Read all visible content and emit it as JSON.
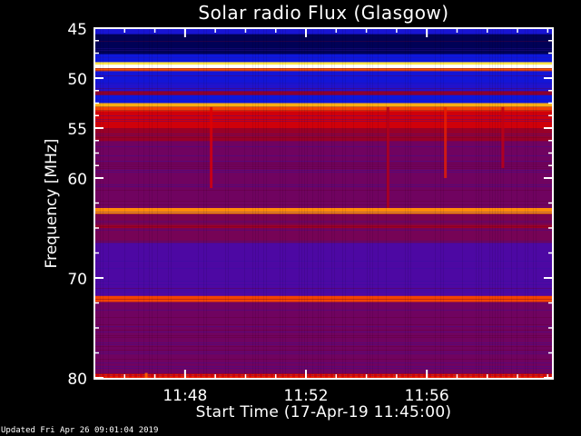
{
  "updated_text": "Updated Fri Apr 26 09:01:04 2019",
  "chart_data": {
    "type": "heatmap",
    "title": "Solar radio Flux (Glasgow)",
    "xlabel": "Start Time (17-Apr-19 11:45:00)",
    "ylabel": "Frequency [MHz]",
    "x_unit": "minutes after 11:45:00",
    "xlim": [
      0,
      15.17
    ],
    "ylim": [
      45,
      80.1
    ],
    "y_inverted": true,
    "x_ticks": [
      {
        "value": 3,
        "label": "11:48"
      },
      {
        "value": 7,
        "label": "11:52"
      },
      {
        "value": 11,
        "label": "11:56"
      }
    ],
    "x_minor_step": 1,
    "y_ticks": [
      {
        "value": 45,
        "label": "45"
      },
      {
        "value": 50,
        "label": "50"
      },
      {
        "value": 55,
        "label": "55"
      },
      {
        "value": 60,
        "label": "60"
      },
      {
        "value": 70,
        "label": "70"
      },
      {
        "value": 80,
        "label": "80"
      }
    ],
    "y_minor": [
      46.25,
      47.5,
      48.75,
      51.25,
      52.5,
      53.75,
      56.25,
      57.5,
      58.75,
      62.5,
      65,
      67.5,
      72.5,
      75,
      77.5
    ],
    "colormap": [
      "#000000",
      "#000050",
      "#0818e0",
      "#4a08a8",
      "#8a0030",
      "#e00000",
      "#ff7000",
      "#ffe020",
      "#ffffff"
    ],
    "frequency_profile": [
      {
        "from": 45.0,
        "to": 45.6,
        "intensity": 0.28
      },
      {
        "from": 45.6,
        "to": 47.6,
        "intensity": 0.13
      },
      {
        "from": 47.6,
        "to": 48.4,
        "intensity": 0.26
      },
      {
        "from": 48.4,
        "to": 48.65,
        "intensity": 0.9
      },
      {
        "from": 48.65,
        "to": 49.0,
        "intensity": 1.0
      },
      {
        "from": 49.0,
        "to": 49.3,
        "intensity": 0.72
      },
      {
        "from": 49.3,
        "to": 50.6,
        "intensity": 0.27
      },
      {
        "from": 50.6,
        "to": 51.3,
        "intensity": 0.3
      },
      {
        "from": 51.3,
        "to": 51.7,
        "intensity": 0.5
      },
      {
        "from": 51.7,
        "to": 52.5,
        "intensity": 0.26
      },
      {
        "from": 52.5,
        "to": 52.9,
        "intensity": 0.82
      },
      {
        "from": 52.9,
        "to": 53.3,
        "intensity": 0.7
      },
      {
        "from": 53.3,
        "to": 55.0,
        "intensity": 0.6
      },
      {
        "from": 55.0,
        "to": 56.3,
        "intensity": 0.52
      },
      {
        "from": 56.3,
        "to": 63.0,
        "intensity": 0.45
      },
      {
        "from": 63.0,
        "to": 63.6,
        "intensity": 0.78
      },
      {
        "from": 63.6,
        "to": 64.6,
        "intensity": 0.47
      },
      {
        "from": 64.6,
        "to": 65.0,
        "intensity": 0.53
      },
      {
        "from": 65.0,
        "to": 66.5,
        "intensity": 0.46
      },
      {
        "from": 66.5,
        "to": 71.8,
        "intensity": 0.38
      },
      {
        "from": 71.8,
        "to": 72.4,
        "intensity": 0.7
      },
      {
        "from": 72.4,
        "to": 79.6,
        "intensity": 0.45
      },
      {
        "from": 79.6,
        "to": 80.1,
        "intensity": 0.66
      }
    ],
    "bursts": [
      {
        "time": 3.85,
        "from": 52.9,
        "to": 61,
        "intensity": 0.62
      },
      {
        "time": 9.7,
        "from": 52.9,
        "to": 63,
        "intensity": 0.56
      },
      {
        "time": 11.6,
        "from": 52.9,
        "to": 60,
        "intensity": 0.66
      },
      {
        "time": 13.5,
        "from": 52.9,
        "to": 59,
        "intensity": 0.58
      },
      {
        "time": 1.7,
        "from": 79.5,
        "to": 80.1,
        "intensity": 0.75
      }
    ]
  }
}
